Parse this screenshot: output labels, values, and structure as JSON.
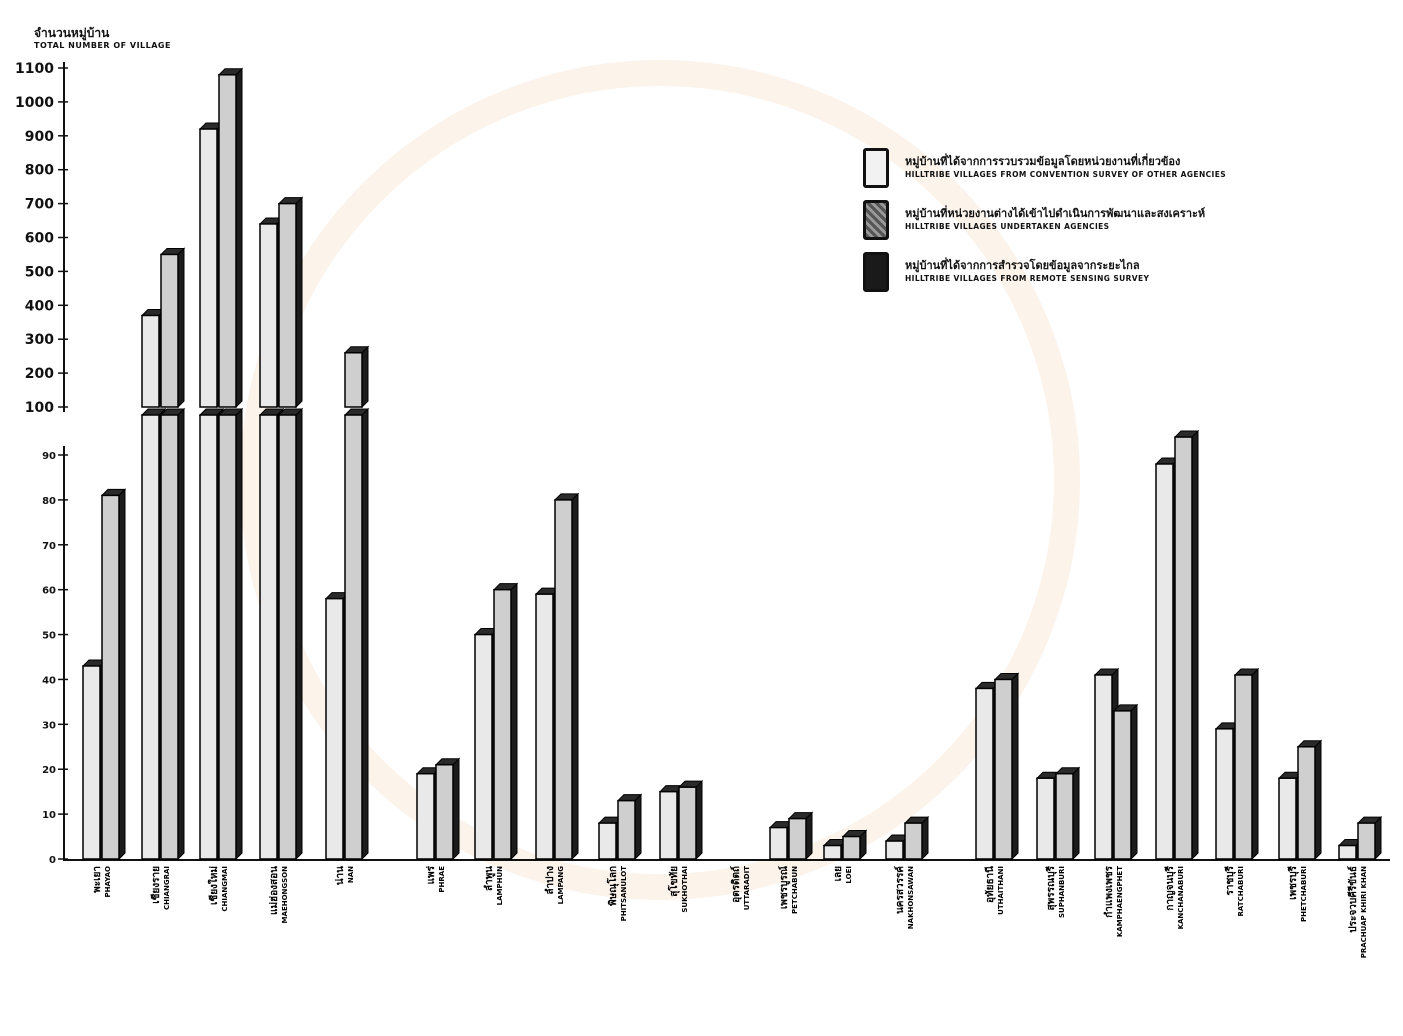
{
  "chart_data": {
    "type": "bar",
    "y_title_th": "จำนวนหมู่บ้าน",
    "y_title_en": "TOTAL NUMBER OF VILLAGE",
    "upper_ticks": [
      "1100",
      "1000",
      "900",
      "800",
      "700",
      "600",
      "500",
      "400",
      "300",
      "200",
      "100"
    ],
    "lower_ticks": [
      "90",
      "80",
      "70",
      "60",
      "50",
      "40",
      "30",
      "20",
      "10",
      "0"
    ],
    "axis_break": {
      "upper_range": [
        100,
        1100
      ],
      "lower_range": [
        0,
        95
      ]
    },
    "legend": [
      {
        "th": "หมู่บ้านที่ได้จากการรวบรวมข้อมูลโดยหน่วยงานที่เกี่ยวข้อง",
        "en": "HILLTRIBE VILLAGES FROM CONVENTION SURVEY OF OTHER AGENCIES"
      },
      {
        "th": "หมู่บ้านที่หน่วยงานต่างได้เข้าไปดำเนินการพัฒนาและสงเคราะห์",
        "en": "HILLTRIBE VILLAGES UNDERTAKEN AGENCIES"
      },
      {
        "th": "หมู่บ้านที่ได้จากการสำรวจโดยข้อมูลจากระยะไกล",
        "en": "HILLTRIBE VILLAGES FROM REMOTE SENSING SURVEY"
      }
    ],
    "categories": [
      {
        "th": "พะเยา",
        "en": "PHAYAO"
      },
      {
        "th": "เชียงราย",
        "en": "CHIANGRAI"
      },
      {
        "th": "เชียงใหม่",
        "en": "CHIANGMAI"
      },
      {
        "th": "แม่ฮ่องสอน",
        "en": "MAEHONGSON"
      },
      {
        "th": "น่าน",
        "en": "NAN"
      },
      {
        "th": "แพร่",
        "en": "PHRAE"
      },
      {
        "th": "ลำพูน",
        "en": "LAMPHUN"
      },
      {
        "th": "ลำปาง",
        "en": "LAMPANG"
      },
      {
        "th": "พิษณุโลก",
        "en": "PHITSANULOT"
      },
      {
        "th": "สุโขทัย",
        "en": "SUKHOTHAI"
      },
      {
        "th": "อุตรดิตถ์",
        "en": "UTTARADIT"
      },
      {
        "th": "เพชรบูรณ์",
        "en": "PETCHABUN"
      },
      {
        "th": "เลย",
        "en": "LOEI"
      },
      {
        "th": "นครสวรรค์",
        "en": "NAKHONSAWAN"
      },
      {
        "th": "อุทัยธานี",
        "en": "UTHAITHANI"
      },
      {
        "th": "สุพรรณบุรี",
        "en": "SUPHANBURI"
      },
      {
        "th": "กำแพงเพชร",
        "en": "KAMPHAENGPHET"
      },
      {
        "th": "กาญจนบุรี",
        "en": "KANCHANABURI"
      },
      {
        "th": "ราชบุรี",
        "en": "RATCHABURI"
      },
      {
        "th": "เพชรบุรี",
        "en": "PHETCHABURI"
      },
      {
        "th": "ประจวบคีรีขันธ์",
        "en": "PRACHUAP KHIRI KHAN"
      }
    ],
    "series": [
      {
        "values": [
          43,
          370,
          920,
          640,
          58,
          19,
          50,
          59,
          8,
          15,
          0,
          7,
          3,
          4,
          38,
          18,
          41,
          88,
          29,
          18,
          3
        ]
      },
      {
        "values": [
          81,
          550,
          1080,
          700,
          260,
          21,
          60,
          80,
          13,
          16,
          0,
          9,
          5,
          8,
          40,
          19,
          33,
          94,
          41,
          25,
          8
        ]
      }
    ],
    "colors": {
      "bar_front": "#e9e9e9",
      "bar_side": "#1c1c1c",
      "bar_top": "#2a2a2a",
      "axis": "#111111"
    }
  }
}
